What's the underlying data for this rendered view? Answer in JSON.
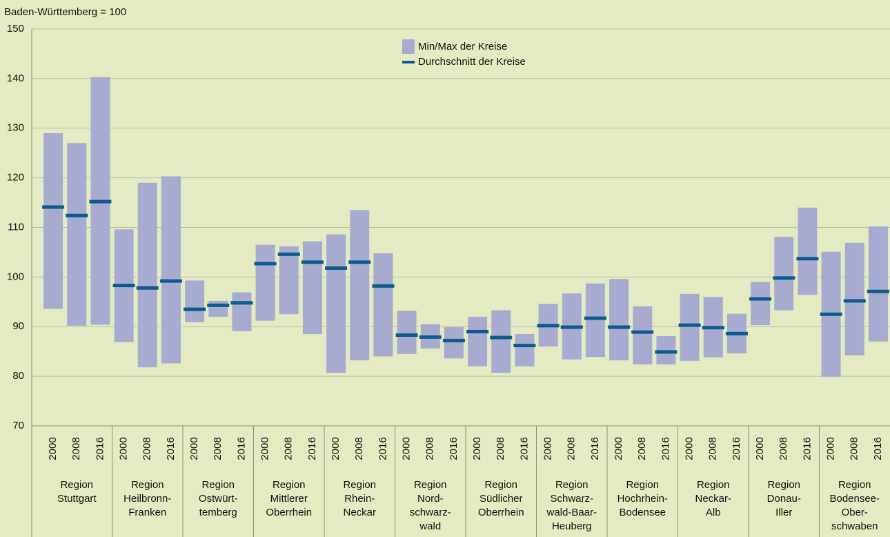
{
  "chart_data": {
    "type": "range-bar",
    "ylabel": "Baden-Württemberg = 100",
    "ylim": [
      70,
      150
    ],
    "yticks": [
      70,
      80,
      90,
      100,
      110,
      120,
      130,
      140,
      150
    ],
    "grid": true,
    "groups": [
      {
        "label": [
          "Region",
          "Stuttgart"
        ],
        "categories": [
          "2000",
          "2008",
          "2016"
        ]
      },
      {
        "label": [
          "Region",
          "Heilbronn-",
          "Franken"
        ],
        "categories": [
          "2000",
          "2008",
          "2016"
        ]
      },
      {
        "label": [
          "Region",
          "Ostwürt-",
          "temberg"
        ],
        "categories": [
          "2000",
          "2008",
          "2016"
        ]
      },
      {
        "label": [
          "Region",
          "Mittlerer",
          "Oberrhein"
        ],
        "categories": [
          "2000",
          "2008",
          "2016"
        ]
      },
      {
        "label": [
          "Region",
          "Rhein-",
          "Neckar"
        ],
        "categories": [
          "2000",
          "2008",
          "2016"
        ]
      },
      {
        "label": [
          "Region",
          "Nord-",
          "schwarz-",
          "wald"
        ],
        "categories": [
          "2000",
          "2008",
          "2016"
        ]
      },
      {
        "label": [
          "Region",
          "Südlicher",
          "Oberrhein"
        ],
        "categories": [
          "2000",
          "2008",
          "2016"
        ]
      },
      {
        "label": [
          "Region",
          "Schwarz-",
          "wald-Baar-",
          "Heuberg"
        ],
        "categories": [
          "2000",
          "2008",
          "2016"
        ]
      },
      {
        "label": [
          "Region",
          "Hochrhein-",
          "Bodensee"
        ],
        "categories": [
          "2000",
          "2008",
          "2016"
        ]
      },
      {
        "label": [
          "Region",
          "Neckar-",
          "Alb"
        ],
        "categories": [
          "2000",
          "2008",
          "2016"
        ]
      },
      {
        "label": [
          "Region",
          "Donau-",
          "Iller"
        ],
        "categories": [
          "2000",
          "2008",
          "2016"
        ]
      },
      {
        "label": [
          "Region",
          "Bodensee-",
          "Ober-",
          "schwaben"
        ],
        "categories": [
          "2000",
          "2008",
          "2016"
        ]
      }
    ],
    "series": [
      {
        "name": "Min/Max der Kreise",
        "color": "#a7abd0",
        "low": [
          93.6,
          90.2,
          90.4,
          86.9,
          81.8,
          82.6,
          90.9,
          92.0,
          89.1,
          91.2,
          92.5,
          88.5,
          80.7,
          83.2,
          84.0,
          84.5,
          85.6,
          83.6,
          82.0,
          80.7,
          82.0,
          86.0,
          83.4,
          83.9,
          83.2,
          82.4,
          82.4,
          83.1,
          83.8,
          84.6,
          90.3,
          93.3,
          96.4,
          79.9,
          84.2,
          87.0
        ],
        "high": [
          129.0,
          127.0,
          140.3,
          109.6,
          119.0,
          120.3,
          99.3,
          95.2,
          96.9,
          106.5,
          106.2,
          107.2,
          108.6,
          113.5,
          104.8,
          93.2,
          90.5,
          89.9,
          92.0,
          93.3,
          88.5,
          94.6,
          96.7,
          98.7,
          99.6,
          94.1,
          88.1,
          96.6,
          96.0,
          92.6,
          99.0,
          108.1,
          114.0,
          105.1,
          106.9,
          110.2
        ]
      },
      {
        "name": "Durchschnitt der Kreise",
        "color": "#0d5a8c",
        "values": [
          114.1,
          112.4,
          115.2,
          98.3,
          97.8,
          99.2,
          93.5,
          94.3,
          94.8,
          102.7,
          104.6,
          103.0,
          101.8,
          103.0,
          98.2,
          88.3,
          87.9,
          87.2,
          89.0,
          87.8,
          86.2,
          90.2,
          89.9,
          91.7,
          89.9,
          88.9,
          84.9,
          90.3,
          89.8,
          88.6,
          95.6,
          99.8,
          103.7,
          92.5,
          95.2,
          97.1
        ]
      }
    ]
  }
}
